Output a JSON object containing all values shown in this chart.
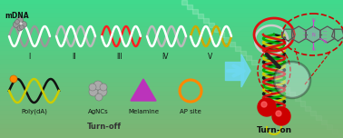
{
  "bg_color": "#4dd9a0",
  "mdna_label": "mDNA",
  "roman_labels": [
    "I",
    "II",
    "III",
    "IV",
    "V"
  ],
  "legend_labels": [
    "Poly(dA)",
    "AgNCs",
    "Melamine",
    "AP site"
  ],
  "turn_off_label": "Turn-off",
  "turn_on_label": "Turn-on",
  "arrow_color": "#6dd8ee",
  "helix1_colors": [
    "#888888",
    "#ffffff"
  ],
  "helix2_colors": [
    "#bbbbbb",
    "#ffffff"
  ],
  "helix3_colors": [
    "#ff2020",
    "#ffffff"
  ],
  "helix4_colors": [
    "#bbbbbb",
    "#ffffff"
  ],
  "helix5_colors": [
    "#ddaa00",
    "#ffffff"
  ],
  "poly_da_colors": [
    "#111111",
    "#cccc00",
    "#00cc00"
  ],
  "melamine_color": "#bb33bb",
  "ap_site_color": "#ff8800",
  "red_ball_color": "#cc0000",
  "strand_colors": [
    "#111111",
    "#cccc00",
    "#00aa00",
    "#dd1111"
  ],
  "red_loop_color": "#dd1111",
  "white_loop_color": "#dddddd",
  "magnifier_color": "#222222",
  "dashed_color": "#cc0000",
  "mol_bond_color": "#555555",
  "mol_ring_color": "#cc88cc",
  "mol_nh_color": "#cc44cc"
}
